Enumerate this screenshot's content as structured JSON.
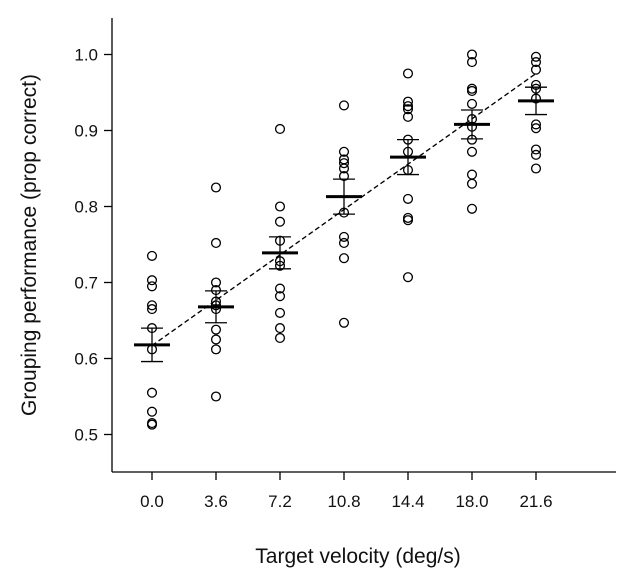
{
  "chart_data": {
    "type": "scatter",
    "title": "",
    "xlabel": "Target velocity (deg/s)",
    "ylabel": "Grouping performance (prop correct)",
    "categories": [
      "0.0",
      "3.6",
      "7.2",
      "10.8",
      "14.4",
      "18.0",
      "21.6"
    ],
    "ylim": [
      0.45,
      1.05
    ],
    "yticks": [
      "0.5",
      "0.6",
      "0.7",
      "0.8",
      "0.9",
      "1.0"
    ],
    "grid": false,
    "legend": "none",
    "points": [
      [
        0.735,
        0.703,
        0.695,
        0.67,
        0.665,
        0.64,
        0.612,
        0.555,
        0.53,
        0.515,
        0.513
      ],
      [
        0.825,
        0.752,
        0.7,
        0.69,
        0.675,
        0.67,
        0.665,
        0.638,
        0.625,
        0.612,
        0.55
      ],
      [
        0.902,
        0.8,
        0.78,
        0.755,
        0.728,
        0.722,
        0.692,
        0.682,
        0.66,
        0.64,
        0.627
      ],
      [
        0.933,
        0.872,
        0.862,
        0.857,
        0.85,
        0.84,
        0.792,
        0.76,
        0.752,
        0.732,
        0.647
      ],
      [
        0.975,
        0.938,
        0.932,
        0.928,
        0.918,
        0.888,
        0.872,
        0.848,
        0.81,
        0.785,
        0.782,
        0.707
      ],
      [
        1.0,
        0.99,
        0.955,
        0.952,
        0.935,
        0.915,
        0.905,
        0.888,
        0.872,
        0.842,
        0.83,
        0.797
      ],
      [
        0.997,
        0.99,
        0.98,
        0.96,
        0.955,
        0.942,
        0.908,
        0.903,
        0.875,
        0.868,
        0.85
      ]
    ],
    "means": [
      0.618,
      0.668,
      0.739,
      0.813,
      0.865,
      0.908,
      0.939
    ],
    "sem": [
      0.022,
      0.021,
      0.021,
      0.023,
      0.023,
      0.019,
      0.018
    ],
    "fit_line": {
      "x": [
        0.0,
        21.6
      ],
      "y": [
        0.617,
        0.975
      ],
      "style": "dashed"
    },
    "colors": {
      "points": "#000000",
      "means": "#000000",
      "axes": "#000000"
    }
  }
}
